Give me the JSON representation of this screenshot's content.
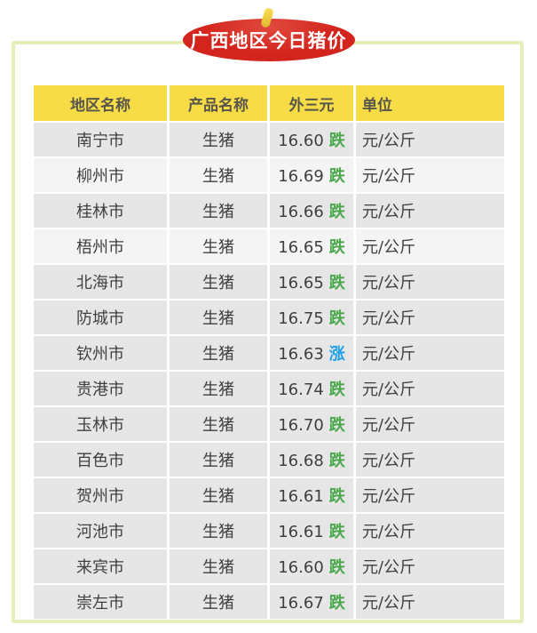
{
  "badge": {
    "title": "广西地区今日猪价"
  },
  "colors": {
    "badge_red": "#D3251D",
    "stem_yellow": "#F2CE3A",
    "frame_border": "#E6EFB9",
    "header_yellow": "#F8DC46",
    "header_text": "#57564D",
    "row_dark": "#E6E6E6",
    "row_light": "#F4F4F5",
    "text": "#403F3D",
    "trend_down_green": "#4BA84C",
    "trend_up_blue": "#1F9EEA"
  },
  "chart_data": {
    "type": "table",
    "title": "广西地区今日猪价",
    "columns": [
      "地区名称",
      "产品名称",
      "外三元",
      "单位"
    ],
    "light_row_indices": [
      1,
      3
    ],
    "rows": [
      {
        "region": "南宁市",
        "product": "生猪",
        "price": "16.60",
        "trend": "跌",
        "direction": "down",
        "unit": "元/公斤"
      },
      {
        "region": "柳州市",
        "product": "生猪",
        "price": "16.69",
        "trend": "跌",
        "direction": "down",
        "unit": "元/公斤"
      },
      {
        "region": "桂林市",
        "product": "生猪",
        "price": "16.66",
        "trend": "跌",
        "direction": "down",
        "unit": "元/公斤"
      },
      {
        "region": "梧州市",
        "product": "生猪",
        "price": "16.65",
        "trend": "跌",
        "direction": "down",
        "unit": "元/公斤"
      },
      {
        "region": "北海市",
        "product": "生猪",
        "price": "16.65",
        "trend": "跌",
        "direction": "down",
        "unit": "元/公斤"
      },
      {
        "region": "防城市",
        "product": "生猪",
        "price": "16.75",
        "trend": "跌",
        "direction": "down",
        "unit": "元/公斤"
      },
      {
        "region": "钦州市",
        "product": "生猪",
        "price": "16.63",
        "trend": "涨",
        "direction": "up",
        "unit": "元/公斤"
      },
      {
        "region": "贵港市",
        "product": "生猪",
        "price": "16.74",
        "trend": "跌",
        "direction": "down",
        "unit": "元/公斤"
      },
      {
        "region": "玉林市",
        "product": "生猪",
        "price": "16.70",
        "trend": "跌",
        "direction": "down",
        "unit": "元/公斤"
      },
      {
        "region": "百色市",
        "product": "生猪",
        "price": "16.68",
        "trend": "跌",
        "direction": "down",
        "unit": "元/公斤"
      },
      {
        "region": "贺州市",
        "product": "生猪",
        "price": "16.61",
        "trend": "跌",
        "direction": "down",
        "unit": "元/公斤"
      },
      {
        "region": "河池市",
        "product": "生猪",
        "price": "16.61",
        "trend": "跌",
        "direction": "down",
        "unit": "元/公斤"
      },
      {
        "region": "来宾市",
        "product": "生猪",
        "price": "16.60",
        "trend": "跌",
        "direction": "down",
        "unit": "元/公斤"
      },
      {
        "region": "崇左市",
        "product": "生猪",
        "price": "16.67",
        "trend": "跌",
        "direction": "down",
        "unit": "元/公斤"
      }
    ]
  }
}
